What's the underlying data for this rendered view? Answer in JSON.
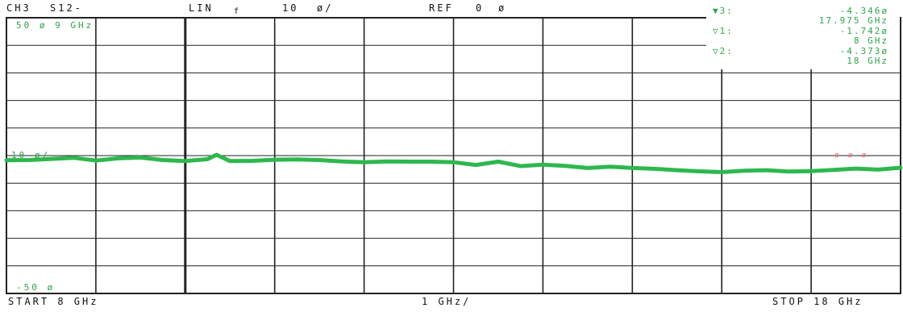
{
  "header": {
    "channel": "CH3",
    "param": "S12-",
    "format": "LIN",
    "format_sub": "f",
    "scale": "10",
    "scale_unit": "ø/",
    "ref_label": "REF",
    "ref_value": "0",
    "ref_unit": "ø"
  },
  "footer": {
    "start": "START  8 GHz",
    "span": "1 GHz/",
    "stop": "STOP 18 GHz"
  },
  "axis_labels": {
    "top": "50  ø 9  GHz",
    "mid": "10  ø/",
    "bottom": "-50  ø",
    "right_ref": "ø ø  ø"
  },
  "markers": [
    {
      "id": "3",
      "symbol": "▼3:",
      "value": "-4.346ø",
      "freq": "17.975 GHz"
    },
    {
      "id": "1",
      "symbol": "▽1:",
      "value": "-1.742ø",
      "freq": "8  GHz"
    },
    {
      "id": "2",
      "symbol": "▽2:",
      "value": "-4.373ø",
      "freq": "18  GHz"
    }
  ],
  "colors": {
    "trace": "#2db84d",
    "grid": "#222222",
    "marker_text": "#2fa34a"
  },
  "chart_data": {
    "type": "line",
    "title": "",
    "xlabel": "",
    "ylabel": "",
    "xlim": [
      8,
      18
    ],
    "ylim": [
      -50,
      50
    ],
    "grid": true,
    "x_divisions": 10,
    "y_divisions": 10,
    "series": [
      {
        "x": [
          8.0,
          8.25,
          8.5,
          8.75,
          9.0,
          9.25,
          9.5,
          9.75,
          10.0,
          10.25,
          10.35,
          10.5,
          10.75,
          11.0,
          11.25,
          11.5,
          11.75,
          12.0,
          12.25,
          12.5,
          12.75,
          13.0,
          13.25,
          13.5,
          13.75,
          14.0,
          14.25,
          14.5,
          14.75,
          15.0,
          15.25,
          15.5,
          15.75,
          16.0,
          16.25,
          16.5,
          16.75,
          17.0,
          17.25,
          17.5,
          17.75,
          18.0
        ],
        "y": [
          -1.7,
          -1.6,
          -1.2,
          -0.8,
          -1.8,
          -1.0,
          -0.7,
          -1.6,
          -2.0,
          -1.3,
          0.3,
          -2.0,
          -1.9,
          -1.5,
          -1.4,
          -1.6,
          -2.1,
          -2.4,
          -2.1,
          -2.2,
          -2.2,
          -2.4,
          -3.4,
          -2.2,
          -3.8,
          -3.3,
          -3.7,
          -4.5,
          -4.0,
          -4.5,
          -4.8,
          -5.3,
          -5.7,
          -6.0,
          -5.5,
          -5.3,
          -5.8,
          -5.6,
          -5.2,
          -4.7,
          -5.1,
          -4.4
        ]
      }
    ]
  }
}
